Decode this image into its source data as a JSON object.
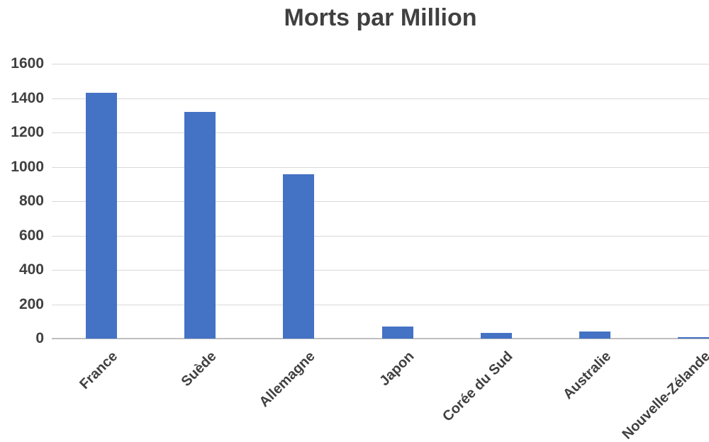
{
  "chart_data": {
    "type": "bar",
    "title": "Morts par Million",
    "categories": [
      "France",
      "Suède",
      "Allemagne",
      "Japon",
      "Corée du Sud",
      "Australie",
      "Nouvelle-Zélande"
    ],
    "values": [
      1430,
      1320,
      955,
      70,
      35,
      40,
      7
    ],
    "xlabel": "",
    "ylabel": "",
    "ylim": [
      0,
      1600
    ],
    "yticks": [
      0,
      200,
      400,
      600,
      800,
      1000,
      1200,
      1400,
      1600
    ],
    "grid": true,
    "legend": false,
    "legend_position": "none",
    "bar_color": "#4472C4"
  },
  "colors": {
    "bar": "#4472C4",
    "text": "#404040",
    "gridline": "#D9D9D9",
    "axis_line": "#BFBFBF",
    "background": "#FFFFFF"
  }
}
